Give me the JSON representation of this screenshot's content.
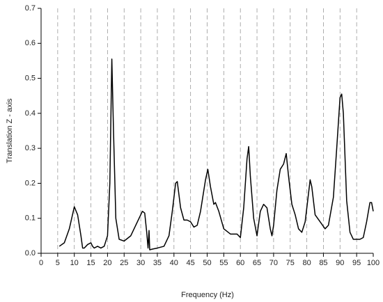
{
  "chart_data": {
    "type": "line",
    "x_label": "Frequency (Hz)",
    "y_label": "Translation Z - axis",
    "x": [
      5.5,
      7,
      8.5,
      10,
      11,
      12,
      12.5,
      13,
      14,
      15,
      15.5,
      16,
      17,
      18,
      19,
      20,
      20.7,
      21.3,
      21.8,
      22.5,
      23.5,
      25,
      27,
      29,
      30.5,
      31.2,
      31.8,
      32.2,
      32.5,
      32.7,
      33.5,
      35,
      37,
      38.5,
      39.5,
      40.5,
      41,
      42,
      43,
      44,
      45,
      46,
      47,
      48,
      49.5,
      50.2,
      51,
      52,
      52.5,
      53.5,
      55,
      57,
      59,
      60,
      61,
      62,
      62.5,
      63,
      64,
      65,
      66,
      67,
      68,
      69,
      69.5,
      70,
      71,
      72,
      73,
      73.8,
      74.5,
      75.5,
      76.5,
      77.5,
      78.5,
      79.5,
      80.5,
      81,
      81.5,
      82.5,
      84,
      85.5,
      86.5,
      88,
      89,
      90,
      90.5,
      91,
      92,
      93,
      94,
      95,
      96,
      97,
      98,
      99,
      99.5,
      100
    ],
    "series": [
      {
        "color": "#000000",
        "values": [
          0.02,
          0.03,
          0.07,
          0.133,
          0.11,
          0.05,
          0.015,
          0.015,
          0.025,
          0.03,
          0.02,
          0.015,
          0.02,
          0.015,
          0.02,
          0.05,
          0.2,
          0.555,
          0.35,
          0.1,
          0.04,
          0.035,
          0.05,
          0.09,
          0.12,
          0.115,
          0.06,
          0.015,
          0.065,
          0.01,
          0.012,
          0.015,
          0.02,
          0.05,
          0.12,
          0.2,
          0.205,
          0.13,
          0.095,
          0.095,
          0.09,
          0.075,
          0.08,
          0.12,
          0.21,
          0.24,
          0.19,
          0.14,
          0.145,
          0.12,
          0.07,
          0.055,
          0.055,
          0.045,
          0.13,
          0.27,
          0.305,
          0.22,
          0.1,
          0.05,
          0.12,
          0.14,
          0.13,
          0.07,
          0.05,
          0.08,
          0.18,
          0.24,
          0.255,
          0.285,
          0.22,
          0.14,
          0.11,
          0.07,
          0.06,
          0.09,
          0.17,
          0.21,
          0.19,
          0.11,
          0.09,
          0.07,
          0.08,
          0.16,
          0.3,
          0.445,
          0.455,
          0.4,
          0.15,
          0.06,
          0.04,
          0.04,
          0.04,
          0.045,
          0.09,
          0.145,
          0.145,
          0.12
        ]
      }
    ],
    "xlim": [
      0,
      100
    ],
    "ylim": [
      0,
      0.7
    ],
    "xticks": [
      0,
      5,
      10,
      15,
      20,
      25,
      30,
      35,
      40,
      45,
      50,
      55,
      60,
      65,
      70,
      75,
      80,
      85,
      90,
      95,
      100
    ],
    "yticks": [
      {
        "value": 0,
        "label": "0.0"
      },
      0.1,
      0.2,
      0.3,
      0.4,
      0.5,
      0.6,
      0.7
    ],
    "grid": true
  }
}
